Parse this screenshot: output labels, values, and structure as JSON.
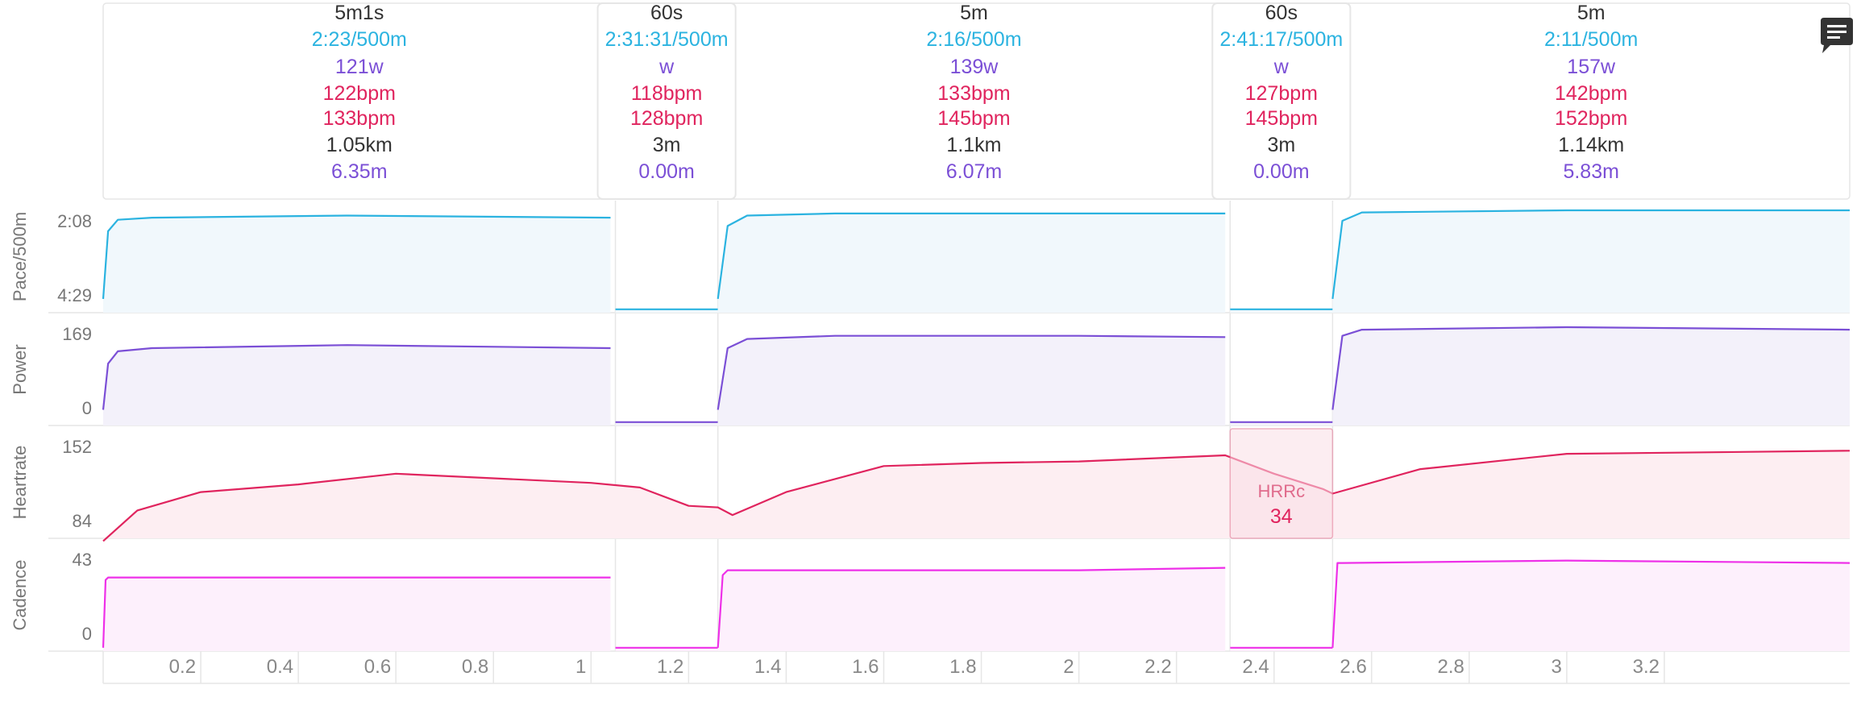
{
  "menu_icon": "chat-lines-icon",
  "colors": {
    "pace": "#2bb3e0",
    "pace_fill": "#f1f8fc",
    "power": "#7b4fd6",
    "power_fill": "#f3f1fa",
    "heartrate": "#e0245e",
    "heartrate_fill": "#fdeef2",
    "cadence": "#ee30e8",
    "cadence_fill": "#fdf0fc",
    "text_dark": "#333333",
    "grid": "#e6e6e6",
    "hrrc_box": "#f9dfe6",
    "hrrc_label": "#e06b8c"
  },
  "intervals": [
    {
      "duration": "5m1s",
      "pace": "2:23/500m",
      "power": "121w",
      "hr_avg": "122bpm",
      "hr_max": "133bpm",
      "distance": "1.05km",
      "stroke": "6.35m",
      "start_km": 0.0,
      "end_km": 1.05
    },
    {
      "duration": "60s",
      "pace": "2:31:31/500m",
      "power": "w",
      "hr_avg": "118bpm",
      "hr_max": "128bpm",
      "distance": "3m",
      "stroke": "0.00m",
      "start_km": 1.05,
      "end_km": 1.26
    },
    {
      "duration": "5m",
      "pace": "2:16/500m",
      "power": "139w",
      "hr_avg": "133bpm",
      "hr_max": "145bpm",
      "distance": "1.1km",
      "stroke": "6.07m",
      "start_km": 1.26,
      "end_km": 2.31
    },
    {
      "duration": "60s",
      "pace": "2:41:17/500m",
      "power": "w",
      "hr_avg": "127bpm",
      "hr_max": "145bpm",
      "distance": "3m",
      "stroke": "0.00m",
      "start_km": 2.31,
      "end_km": 2.52
    },
    {
      "duration": "5m",
      "pace": "2:11/500m",
      "power": "157w",
      "hr_avg": "142bpm",
      "hr_max": "152bpm",
      "distance": "1.14km",
      "stroke": "5.83m",
      "start_km": 2.52,
      "end_km": 3.58
    }
  ],
  "chart_data": {
    "type": "line",
    "x_domain": [
      0,
      3.58
    ],
    "x_ticks": [
      0.2,
      0.4,
      0.6,
      0.8,
      1,
      1.2,
      1.4,
      1.6,
      1.8,
      2,
      2.2,
      2.4,
      2.6,
      2.8,
      3,
      3.2
    ],
    "x_tick_labels": [
      "0.2",
      "0.4",
      "0.6",
      "0.8",
      "1",
      "1.2",
      "1.4",
      "1.6",
      "1.8",
      "2",
      "2.2",
      "2.4",
      "2.6",
      "2.8",
      "3",
      "3.2"
    ],
    "panels": [
      {
        "key": "pace",
        "label": "Pace/500m",
        "tick_labels": [
          "2:08",
          "4:29"
        ],
        "ylim": [
          0,
          1
        ],
        "segments": [
          {
            "x": [
              0,
              0.01,
              0.03,
              0.1,
              0.5,
              1.04
            ],
            "y": [
              0.1,
              0.75,
              0.86,
              0.88,
              0.9,
              0.88
            ]
          },
          {
            "x": [
              1.05,
              1.26
            ],
            "y": [
              0.0,
              0.0
            ]
          },
          {
            "x": [
              1.26,
              1.28,
              1.32,
              1.5,
              2.0,
              2.3
            ],
            "y": [
              0.1,
              0.8,
              0.9,
              0.92,
              0.92,
              0.92
            ]
          },
          {
            "x": [
              2.31,
              2.52
            ],
            "y": [
              0.0,
              0.0
            ]
          },
          {
            "x": [
              2.52,
              2.54,
              2.58,
              3.0,
              3.58
            ],
            "y": [
              0.1,
              0.85,
              0.93,
              0.95,
              0.95
            ]
          }
        ]
      },
      {
        "key": "power",
        "label": "Power",
        "tick_labels": [
          "169",
          "0"
        ],
        "ylim": [
          0,
          169
        ],
        "segments": [
          {
            "x": [
              0,
              0.01,
              0.03,
              0.1,
              0.5,
              1.04
            ],
            "y": [
              20,
              95,
              115,
              120,
              125,
              120
            ]
          },
          {
            "x": [
              1.05,
              1.26
            ],
            "y": [
              0,
              0
            ]
          },
          {
            "x": [
              1.26,
              1.28,
              1.32,
              1.5,
              2.0,
              2.3
            ],
            "y": [
              20,
              120,
              135,
              140,
              140,
              138
            ]
          },
          {
            "x": [
              2.31,
              2.52
            ],
            "y": [
              0,
              0
            ]
          },
          {
            "x": [
              2.52,
              2.54,
              2.58,
              3.0,
              3.58
            ],
            "y": [
              20,
              140,
              150,
              154,
              150
            ]
          }
        ]
      },
      {
        "key": "heartrate",
        "label": "Heartrate",
        "tick_labels": [
          "152",
          "84"
        ],
        "ylim": [
          84,
          152
        ],
        "segments": [
          {
            "x": [
              0,
              0.07,
              0.2,
              0.4,
              0.6,
              0.8,
              1.0,
              1.1,
              1.2,
              1.26,
              1.29,
              1.4,
              1.6,
              1.8,
              2.0,
              2.3,
              2.4,
              2.5,
              2.52,
              2.7,
              3.0,
              3.3,
              3.58
            ],
            "y": [
              80,
              100,
              112,
              117,
              124,
              121,
              118,
              115,
              103,
              102,
              97,
              112,
              129,
              131,
              132,
              136,
              124,
              114,
              111,
              127,
              137,
              138,
              139
            ]
          }
        ]
      },
      {
        "key": "cadence",
        "label": "Cadence",
        "tick_labels": [
          "43",
          "0"
        ],
        "ylim": [
          0,
          43
        ],
        "segments": [
          {
            "x": [
              0,
              0.005,
              0.01,
              0.5,
              1.04
            ],
            "y": [
              0,
              28,
              29,
              29,
              29
            ]
          },
          {
            "x": [
              1.05,
              1.26
            ],
            "y": [
              0,
              0
            ]
          },
          {
            "x": [
              1.26,
              1.27,
              1.28,
              2.0,
              2.3
            ],
            "y": [
              0,
              30,
              32,
              32,
              33
            ]
          },
          {
            "x": [
              2.31,
              2.52
            ],
            "y": [
              0,
              0
            ]
          },
          {
            "x": [
              2.52,
              2.53,
              2.54,
              3.0,
              3.58
            ],
            "y": [
              0,
              35,
              35,
              36,
              35
            ]
          }
        ]
      }
    ],
    "annotation": {
      "label": "HRRc",
      "value": "34",
      "x_start": 2.31,
      "x_end": 2.52
    }
  }
}
